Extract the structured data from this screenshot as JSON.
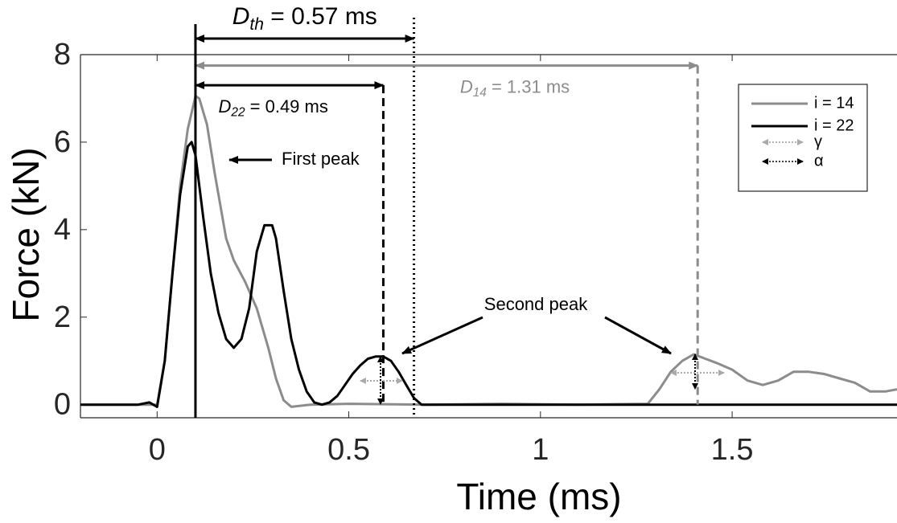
{
  "chart_data": {
    "type": "line",
    "xlabel": "Time (ms)",
    "ylabel": "Force (kN)",
    "xlim": [
      -0.2,
      1.93
    ],
    "ylim": [
      -0.3,
      8
    ],
    "xticks": [
      0,
      0.5,
      1,
      1.5
    ],
    "yticks": [
      0,
      2,
      4,
      6,
      8
    ],
    "grid": false,
    "legend": "upper right",
    "series": [
      {
        "name": "i = 14",
        "color": "#8c8c8c",
        "x": [
          -0.2,
          -0.1,
          0,
          0.02,
          0.04,
          0.06,
          0.08,
          0.1,
          0.11,
          0.13,
          0.15,
          0.18,
          0.2,
          0.23,
          0.26,
          0.29,
          0.31,
          0.33,
          0.35,
          0.4,
          0.5,
          0.7,
          0.9,
          1.1,
          1.28,
          1.31,
          1.34,
          1.37,
          1.4,
          1.43,
          1.46,
          1.5,
          1.54,
          1.58,
          1.62,
          1.66,
          1.7,
          1.74,
          1.78,
          1.82,
          1.86,
          1.9,
          1.93
        ],
        "values": [
          0,
          0,
          0,
          1.0,
          3.0,
          5.0,
          6.3,
          7.05,
          7.0,
          6.4,
          5.3,
          3.8,
          3.3,
          2.8,
          2.2,
          1.3,
          0.6,
          0.1,
          -0.05,
          0,
          0.02,
          0,
          0.02,
          0,
          0.02,
          0.35,
          0.75,
          1.0,
          1.15,
          1.05,
          0.95,
          0.8,
          0.55,
          0.45,
          0.55,
          0.75,
          0.75,
          0.7,
          0.6,
          0.5,
          0.3,
          0.3,
          0.35
        ]
      },
      {
        "name": "i = 22",
        "color": "#000000",
        "x": [
          -0.2,
          -0.15,
          -0.1,
          -0.05,
          -0.02,
          0,
          0.02,
          0.04,
          0.06,
          0.08,
          0.09,
          0.1,
          0.12,
          0.14,
          0.16,
          0.18,
          0.2,
          0.22,
          0.24,
          0.26,
          0.28,
          0.3,
          0.31,
          0.33,
          0.35,
          0.37,
          0.39,
          0.41,
          0.43,
          0.45,
          0.47,
          0.49,
          0.51,
          0.53,
          0.55,
          0.57,
          0.59,
          0.61,
          0.63,
          0.65,
          0.67,
          0.69,
          0.71,
          0.8,
          1.0,
          1.2,
          1.4,
          1.6,
          1.8,
          1.93
        ],
        "values": [
          0,
          0,
          0,
          0,
          0.05,
          -0.05,
          1.0,
          3.0,
          4.8,
          5.9,
          6.0,
          5.7,
          4.3,
          3.0,
          2.1,
          1.5,
          1.3,
          1.5,
          2.2,
          3.5,
          4.1,
          4.1,
          3.8,
          2.6,
          1.5,
          0.8,
          0.3,
          0.05,
          0,
          0.05,
          0.2,
          0.45,
          0.7,
          0.9,
          1.05,
          1.1,
          1.1,
          1.0,
          0.75,
          0.45,
          0.15,
          0,
          0,
          0,
          0,
          0,
          0,
          0,
          0,
          0
        ]
      }
    ],
    "markers": [
      {
        "name": "γ",
        "color": "#999999"
      },
      {
        "name": "α",
        "color": "#000000"
      }
    ],
    "measurements": [
      {
        "symbol": "D",
        "sub": "th",
        "text": " = 0.57 ms",
        "start": 0.1,
        "end": 0.67,
        "color": "#000000"
      },
      {
        "symbol": "D",
        "sub": "14",
        "text": " = 1.31 ms",
        "start": 0.1,
        "end": 1.41,
        "color": "#8c8c8c"
      },
      {
        "symbol": "D",
        "sub": "22",
        "text": " = 0.49 ms",
        "start": 0.1,
        "end": 0.59,
        "color": "#000000"
      }
    ],
    "annotations": [
      "First peak",
      "Second peak"
    ]
  }
}
